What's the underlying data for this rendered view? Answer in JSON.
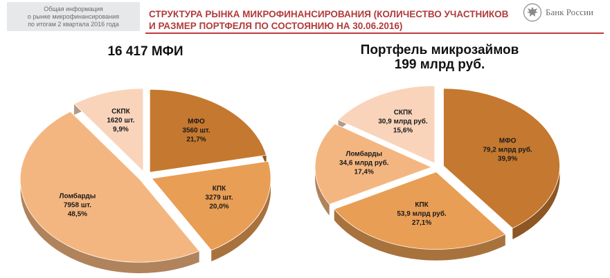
{
  "header": {
    "side_note": [
      "Общая информация",
      "о рынке микрофинансирования",
      "по итогам 2 квартала 2016 года"
    ],
    "title": [
      "СТРУКТУРА РЫНКА МИКРОФИНАНСИРОВАНИЯ (КОЛИЧЕСТВО УЧАСТНИКОВ",
      "И РАЗМЕР ПОРТФЕЛЯ ПО СОСТОЯНИЮ НА 30.06.2016)"
    ],
    "brand": "Банк России",
    "accent_color": "#b23a3a"
  },
  "chart_data": [
    {
      "type": "pie",
      "title": "16 417  МФИ",
      "slices": [
        {
          "name": "МФО",
          "value": 3560,
          "value_label": "3560 шт.",
          "percent": "21,7%",
          "color": "#c5782f"
        },
        {
          "name": "КПК",
          "value": 3279,
          "value_label": "3279 шт.",
          "percent": "20,0%",
          "color": "#e99e55"
        },
        {
          "name": "Ломбарды",
          "value": 7958,
          "value_label": "7958 шт.",
          "percent": "48,5%",
          "color": "#f4b680"
        },
        {
          "name": "СКПК",
          "value": 1620,
          "value_label": "1620 шт.",
          "percent": "9,9%",
          "color": "#f9d4bb"
        }
      ]
    },
    {
      "type": "pie",
      "title": [
        "Портфель микрозаймов",
        "199 млрд руб."
      ],
      "slices": [
        {
          "name": "МФО",
          "value": 79.2,
          "value_label": "79,2 млрд руб.",
          "percent": "39,9%",
          "color": "#c5782f"
        },
        {
          "name": "КПК",
          "value": 53.9,
          "value_label": "53,9 млрд руб.",
          "percent": "27,1%",
          "color": "#e99e55"
        },
        {
          "name": "Ломбарды",
          "value": 34.6,
          "value_label": "34,6 млрд руб.",
          "percent": "17,4%",
          "color": "#f4b680"
        },
        {
          "name": "СКПК",
          "value": 30.9,
          "value_label": "30,9 млрд руб.",
          "percent": "15,6%",
          "color": "#f9d4bb"
        }
      ]
    }
  ]
}
